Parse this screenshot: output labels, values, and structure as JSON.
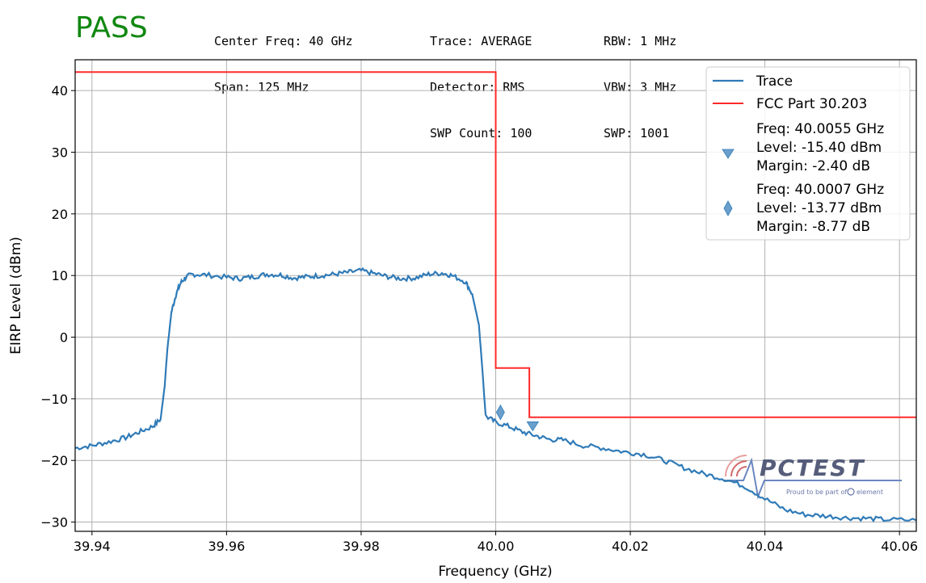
{
  "status": "PASS",
  "header": {
    "col1": [
      "Center Freq: 40 GHz",
      "Span: 125 MHz"
    ],
    "col2": [
      "Trace: AVERAGE",
      "Detector: RMS",
      "SWP Count: 100"
    ],
    "col3": [
      "RBW: 1 MHz",
      "VBW: 3 MHz",
      "SWP: 1001"
    ]
  },
  "watermark": {
    "brand": "PCTEST",
    "tagline": "Proud to be part of",
    "partner": "element"
  },
  "colors": {
    "trace": "#2f7bb8",
    "limit": "#ff2a2a",
    "marker": "#6a9fcc",
    "pass": "#118811"
  },
  "chart_data": {
    "type": "line",
    "xlabel": "Frequency (GHz)",
    "ylabel": "EIRP Level (dBm)",
    "xlim": [
      39.9375,
      40.0625
    ],
    "ylim": [
      -31.5,
      45
    ],
    "x_ticks": [
      39.94,
      39.96,
      39.98,
      40.0,
      40.02,
      40.04,
      40.06
    ],
    "x_tick_labels": [
      "39.94",
      "39.96",
      "39.98",
      "40.00",
      "40.02",
      "40.04",
      "40.06"
    ],
    "y_ticks": [
      -30,
      -20,
      -10,
      0,
      10,
      20,
      30,
      40
    ],
    "y_tick_labels": [
      "−30",
      "−20",
      "−10",
      "0",
      "10",
      "20",
      "30",
      "40"
    ],
    "grid": true,
    "legend_position": "top-right",
    "series": [
      {
        "name": "Trace",
        "x": [
          39.9375,
          39.94,
          39.9425,
          39.945,
          39.947,
          39.949,
          39.9502,
          39.9508,
          39.9512,
          39.9518,
          39.9525,
          39.9532,
          39.954,
          39.955,
          39.957,
          39.96,
          39.962,
          39.964,
          39.966,
          39.968,
          39.97,
          39.972,
          39.974,
          39.976,
          39.978,
          39.98,
          39.982,
          39.984,
          39.986,
          39.988,
          39.99,
          39.992,
          39.9935,
          39.9955,
          39.9965,
          39.9975,
          39.998,
          39.9985,
          40.0,
          40.002,
          40.004,
          40.006,
          40.008,
          40.01,
          40.013,
          40.016,
          40.019,
          40.022,
          40.025,
          40.028,
          40.031,
          40.034,
          40.037,
          40.04,
          40.043,
          40.046,
          40.049,
          40.052,
          40.055,
          40.058,
          40.0625
        ],
        "y": [
          -18,
          -17.6,
          -17,
          -16.3,
          -15.4,
          -14.5,
          -13.3,
          -8,
          -2,
          4,
          7,
          8.8,
          9.8,
          10.2,
          10.1,
          9.7,
          9.5,
          9.8,
          10.2,
          10.1,
          9.6,
          9.8,
          10.0,
          10.2,
          10.5,
          10.8,
          10.3,
          9.8,
          9.5,
          9.6,
          10.2,
          10.4,
          10.0,
          9.0,
          7.0,
          2.0,
          -5.0,
          -12.8,
          -13.8,
          -14.5,
          -15.4,
          -16.0,
          -16.6,
          -16.7,
          -17.6,
          -18.0,
          -18.6,
          -19.0,
          -20.0,
          -21.2,
          -22.2,
          -23.0,
          -24.2,
          -26.2,
          -28.0,
          -28.8,
          -29.0,
          -29.3,
          -29.4,
          -29.6,
          -29.7
        ]
      },
      {
        "name": "FCC Part 30.203",
        "x": [
          39.9375,
          40.0,
          40.0,
          40.005,
          40.005,
          40.0625
        ],
        "y": [
          43,
          43,
          -5,
          -5,
          -13,
          -13
        ]
      }
    ],
    "markers": [
      {
        "shape": "triangle-down",
        "x": 40.0055,
        "y": -14.4,
        "label_lines": [
          "Freq: 40.0055 GHz",
          "Level: -15.40 dBm",
          "Margin: -2.40 dB"
        ]
      },
      {
        "shape": "thin-diamond",
        "x": 40.0007,
        "y": -12.2,
        "label_lines": [
          "Freq: 40.0007 GHz",
          "Level: -13.77 dBm",
          "Margin: -8.77 dB"
        ]
      }
    ]
  }
}
